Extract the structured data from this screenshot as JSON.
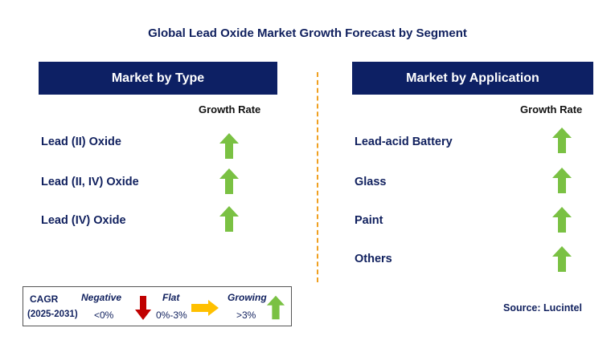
{
  "title": "Global Lead Oxide Market Growth Forecast by Segment",
  "panels": [
    {
      "header": "Market by Type",
      "column_header": "Growth Rate",
      "rows": [
        {
          "label": "Lead (II) Oxide",
          "growth": "Growing"
        },
        {
          "label": "Lead (II, IV) Oxide",
          "growth": "Growing"
        },
        {
          "label": "Lead (IV) Oxide",
          "growth": "Growing"
        }
      ]
    },
    {
      "header": "Market by Application",
      "column_header": "Growth Rate",
      "rows": [
        {
          "label": "Lead-acid Battery",
          "growth": "Growing"
        },
        {
          "label": "Glass",
          "growth": "Growing"
        },
        {
          "label": "Paint",
          "growth": "Growing"
        },
        {
          "label": "Others",
          "growth": "Growing"
        }
      ]
    }
  ],
  "legend": {
    "cagr_label": "CAGR",
    "period": "(2025-2031)",
    "negative": {
      "label": "Negative",
      "range": "<0%",
      "icon": "down-arrow-icon",
      "color": "#c00000"
    },
    "flat": {
      "label": "Flat",
      "range": "0%-3%",
      "icon": "right-arrow-icon",
      "color": "#ffc000"
    },
    "growing": {
      "label": "Growing",
      "range": ">3%",
      "icon": "up-arrow-icon",
      "color": "#7ac143"
    }
  },
  "source": "Source: Lucintel",
  "colors": {
    "header_bg": "#0d2064",
    "text": "#10205e",
    "divider": "#f0a020",
    "growing_arrow": "#7ac143"
  }
}
